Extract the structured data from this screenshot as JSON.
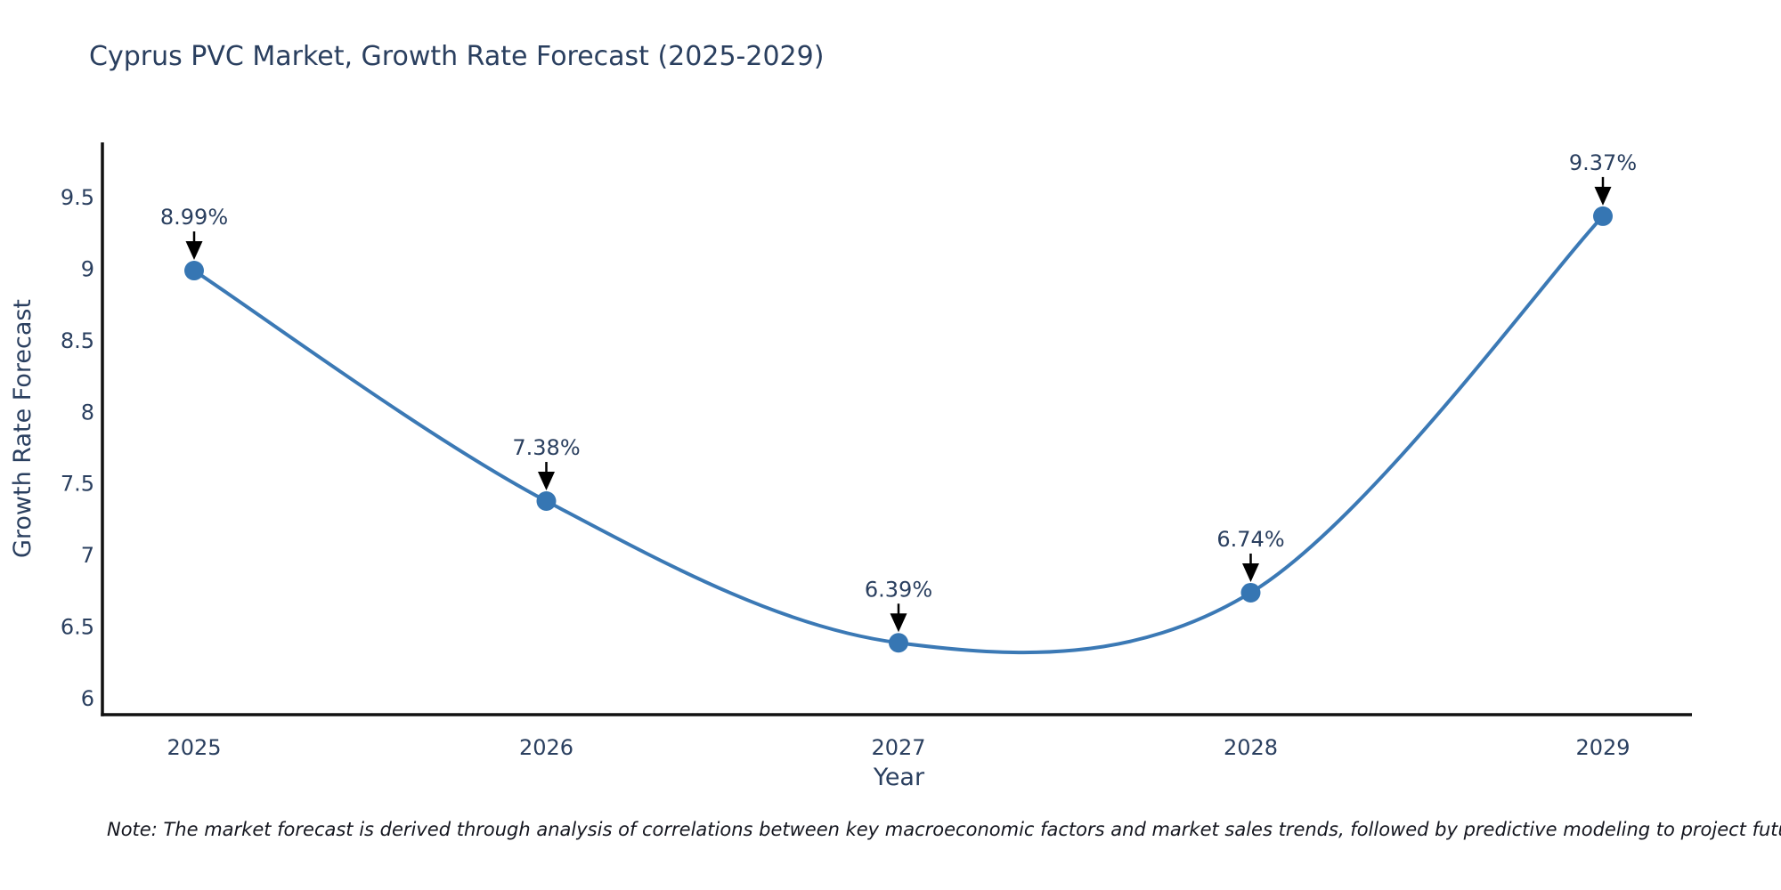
{
  "chart_data": {
    "type": "line",
    "title": "Cyprus PVC Market, Growth Rate Forecast (2025-2029)",
    "xlabel": "Year",
    "ylabel": "Growth Rate Forecast",
    "x": [
      2025,
      2026,
      2027,
      2028,
      2029
    ],
    "series": [
      {
        "name": "Growth Rate Forecast",
        "values": [
          8.99,
          7.38,
          6.39,
          6.74,
          9.37
        ],
        "point_labels": [
          "8.99%",
          "7.38%",
          "6.39%",
          "6.74%",
          "9.37%"
        ]
      }
    ],
    "x_tick_labels": [
      "2025",
      "2026",
      "2027",
      "2028",
      "2029"
    ],
    "y_tick_labels": [
      "6",
      "6.5",
      "7",
      "7.5",
      "8",
      "8.5",
      "9",
      "9.5"
    ],
    "y_ticks": [
      6,
      6.5,
      7,
      7.5,
      8,
      8.5,
      9,
      9.5
    ],
    "ylim": [
      6,
      9.5
    ],
    "line_shape": "spline",
    "grid": false,
    "legend": "none",
    "colors": {
      "line": "#3b79b5",
      "marker": "#3676b3",
      "axis_line": "#111111",
      "text": "#2a3f5f",
      "arrow": "#000000"
    },
    "note": "Note: The market forecast is derived through analysis of correlations between key macroeconomic factors and market sales trends, followed by predictive modeling to project future sales"
  }
}
